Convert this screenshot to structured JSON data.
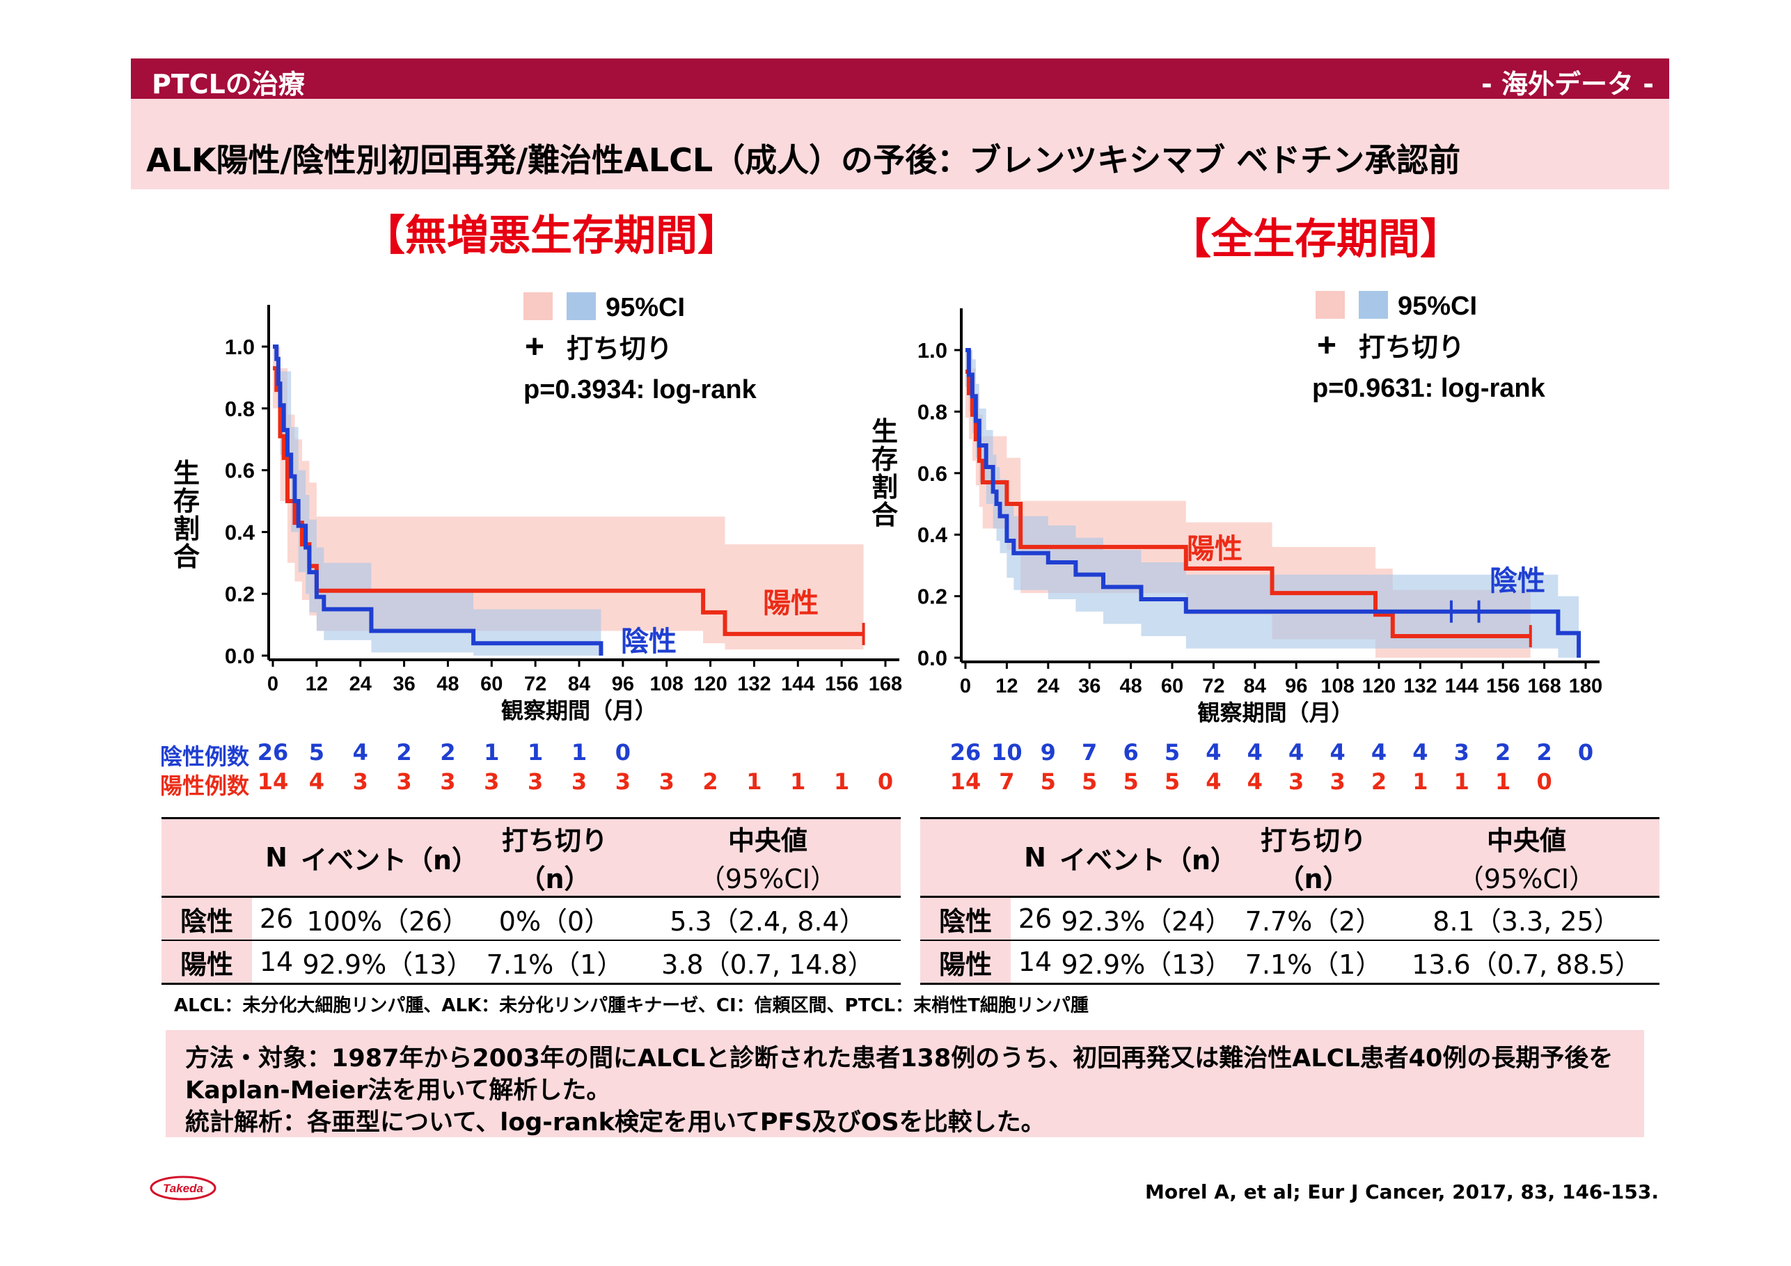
{
  "header": {
    "left": "PTCLの治療",
    "right": "- 海外データ -",
    "subtitle": "ALK陽性/陰性別初回再発/難治性ALCL（成人）の予後：ブレンツキシマブ ベドチン承認前"
  },
  "colors": {
    "bar": "#a50d3b",
    "band": "#fadadd",
    "neg": "#1f3fd1",
    "pos": "#ec2b16",
    "ci_neg": "#a8c6e8",
    "ci_pos": "#f9c9c3"
  },
  "chart_data": [
    {
      "type": "line",
      "title": "【無増悪生存期間】",
      "xlabel": "観察期間（月）",
      "ylabel": "生存割合",
      "xticks": [
        0,
        12,
        24,
        36,
        48,
        60,
        72,
        84,
        96,
        108,
        120,
        132,
        144,
        156,
        168
      ],
      "yticks": [
        "0.0",
        "0.2",
        "0.4",
        "0.6",
        "0.8",
        "1.0"
      ],
      "xlim": [
        0,
        168
      ],
      "ylim": [
        0,
        1.0
      ],
      "legend": {
        "ci": "95%CI",
        "censor": "打ち切り",
        "p": "p=0.3934: log-rank"
      },
      "series": [
        {
          "name": "陰性",
          "points": [
            [
              0,
              1.0
            ],
            [
              1,
              0.96
            ],
            [
              1.5,
              0.88
            ],
            [
              2,
              0.81
            ],
            [
              3,
              0.73
            ],
            [
              4,
              0.65
            ],
            [
              5,
              0.58
            ],
            [
              6,
              0.5
            ],
            [
              7,
              0.42
            ],
            [
              9,
              0.35
            ],
            [
              10,
              0.27
            ],
            [
              12,
              0.19
            ],
            [
              14,
              0.15
            ],
            [
              27,
              0.08
            ],
            [
              55,
              0.04
            ],
            [
              90,
              0.0
            ]
          ],
          "ci": [
            [
              0,
              1.0,
              1.0
            ],
            [
              2,
              0.65,
              0.92
            ],
            [
              5,
              0.4,
              0.74
            ],
            [
              7,
              0.27,
              0.6
            ],
            [
              9,
              0.2,
              0.52
            ],
            [
              10,
              0.14,
              0.44
            ],
            [
              12,
              0.08,
              0.35
            ],
            [
              14,
              0.05,
              0.3
            ],
            [
              27,
              0.01,
              0.21
            ],
            [
              55,
              0.0,
              0.15
            ],
            [
              90,
              0.0,
              0.0
            ]
          ],
          "censored": []
        },
        {
          "name": "陽性",
          "points": [
            [
              0,
              0.93
            ],
            [
              1,
              0.86
            ],
            [
              2,
              0.71
            ],
            [
              3,
              0.64
            ],
            [
              4,
              0.5
            ],
            [
              6,
              0.43
            ],
            [
              8,
              0.36
            ],
            [
              10,
              0.29
            ],
            [
              12,
              0.21
            ],
            [
              24,
              0.21
            ],
            [
              118,
              0.14
            ],
            [
              124,
              0.07
            ],
            [
              162,
              0.07
            ]
          ],
          "ci": [
            [
              0,
              0.8,
              1.0
            ],
            [
              2,
              0.5,
              0.93
            ],
            [
              4,
              0.3,
              0.78
            ],
            [
              6,
              0.24,
              0.7
            ],
            [
              8,
              0.18,
              0.63
            ],
            [
              10,
              0.13,
              0.56
            ],
            [
              12,
              0.08,
              0.45
            ],
            [
              24,
              0.08,
              0.45
            ],
            [
              118,
              0.04,
              0.45
            ],
            [
              124,
              0.02,
              0.36
            ],
            [
              162,
              0.02,
              0.36
            ]
          ],
          "censored": [
            162
          ]
        }
      ],
      "series_labels": {
        "neg": "陰性",
        "pos": "陽性"
      },
      "at_risk": {
        "neg_label": "陰性例数",
        "pos_label": "陽性例数",
        "neg": [
          26,
          5,
          4,
          2,
          2,
          1,
          1,
          1,
          0
        ],
        "pos": [
          14,
          4,
          3,
          3,
          3,
          3,
          3,
          3,
          3,
          3,
          2,
          1,
          1,
          1,
          0
        ]
      }
    },
    {
      "type": "line",
      "title": "【全生存期間】",
      "xlabel": "観察期間（月）",
      "ylabel": "生存割合",
      "xticks": [
        0,
        12,
        24,
        36,
        48,
        60,
        72,
        84,
        96,
        108,
        120,
        132,
        144,
        156,
        168,
        180
      ],
      "yticks": [
        "0.0",
        "0.2",
        "0.4",
        "0.6",
        "0.8",
        "1.0"
      ],
      "xlim": [
        0,
        180
      ],
      "ylim": [
        0,
        1.0
      ],
      "legend": {
        "ci": "95%CI",
        "censor": "打ち切り",
        "p": "p=0.9631: log-rank"
      },
      "series": [
        {
          "name": "陰性",
          "points": [
            [
              0,
              1.0
            ],
            [
              1,
              0.92
            ],
            [
              2,
              0.85
            ],
            [
              3,
              0.77
            ],
            [
              4,
              0.69
            ],
            [
              6,
              0.62
            ],
            [
              8,
              0.54
            ],
            [
              9,
              0.5
            ],
            [
              10,
              0.46
            ],
            [
              12,
              0.38
            ],
            [
              14,
              0.34
            ],
            [
              24,
              0.31
            ],
            [
              32,
              0.27
            ],
            [
              40,
              0.23
            ],
            [
              51,
              0.19
            ],
            [
              64,
              0.15
            ],
            [
              120,
              0.15
            ],
            [
              172,
              0.08
            ],
            [
              178,
              0.0
            ]
          ],
          "censored": [
            141,
            149
          ]
        },
        {
          "name": "陽性",
          "points": [
            [
              0,
              0.93
            ],
            [
              1,
              0.86
            ],
            [
              2,
              0.79
            ],
            [
              3,
              0.71
            ],
            [
              4,
              0.64
            ],
            [
              5,
              0.57
            ],
            [
              12,
              0.5
            ],
            [
              16,
              0.36
            ],
            [
              64,
              0.29
            ],
            [
              89,
              0.21
            ],
            [
              119,
              0.14
            ],
            [
              124,
              0.07
            ],
            [
              164,
              0.07
            ]
          ],
          "censored": [
            164
          ]
        }
      ],
      "series_labels": {
        "neg": "陰性",
        "pos": "陽性"
      },
      "at_risk": {
        "neg": [
          26,
          10,
          9,
          7,
          6,
          5,
          4,
          4,
          4,
          4,
          4,
          4,
          3,
          2,
          2,
          0
        ],
        "pos": [
          14,
          7,
          5,
          5,
          5,
          5,
          4,
          4,
          3,
          3,
          2,
          1,
          1,
          1,
          0
        ]
      }
    }
  ],
  "tables": [
    {
      "headers": [
        "",
        "N",
        "イベント（n）",
        "打ち切り（n）",
        "中央値",
        "（95%CI）"
      ],
      "rows": [
        [
          "陰性",
          "26",
          "100%（26）",
          "0%（0）",
          "5.3（2.4, 8.4）"
        ],
        [
          "陽性",
          "14",
          "92.9%（13）",
          "7.1%（1）",
          "3.8（0.7, 14.8）"
        ]
      ]
    },
    {
      "headers": [
        "",
        "N",
        "イベント（n）",
        "打ち切り（n）",
        "中央値",
        "（95%CI）"
      ],
      "rows": [
        [
          "陰性",
          "26",
          "92.3%（24）",
          "7.7%（2）",
          "8.1（3.3, 25）"
        ],
        [
          "陽性",
          "14",
          "92.9%（13）",
          "7.1%（1）",
          "13.6（0.7, 88.5）"
        ]
      ]
    }
  ],
  "footnote": {
    "abbrev": "ALCL：未分化大細胞リンパ腫、ALK：未分化リンパ腫キナーゼ、CI：信頼区間、PTCL：末梢性T細胞リンパ腫",
    "methods_1": "方法・対象：1987年から2003年の間にALCLと診断された患者138例のうち、初回再発又は難治性ALCL患者40例の長期予後を",
    "methods_2": "Kaplan-Meier法を用いて解析した。",
    "methods_3": "統計解析：各亜型について、log-rank検定を用いてPFS及びOSを比較した。",
    "citation": "Morel A, et al; Eur J Cancer, 2017, 83, 146-153.",
    "logo": "Takeda"
  }
}
